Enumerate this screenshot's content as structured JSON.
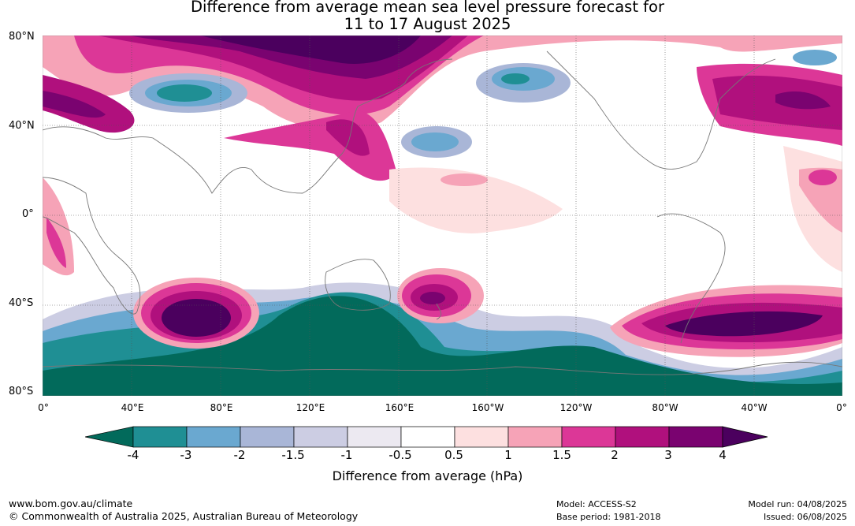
{
  "title_line1": "Difference from average mean sea level pressure forecast for",
  "title_line2": "11 to 17 August 2025",
  "lat_labels": [
    "80°N",
    "40°N",
    "0°",
    "40°S",
    "80°S"
  ],
  "lon_labels": [
    "0°",
    "40°E",
    "80°E",
    "120°E",
    "160°E",
    "160°W",
    "120°W",
    "80°W",
    "40°W",
    "0°"
  ],
  "colorbar": {
    "ticks": [
      "-4",
      "-3",
      "-2",
      "-1.5",
      "-1",
      "-0.5",
      "0.5",
      "1",
      "1.5",
      "2",
      "3",
      "4"
    ],
    "colors": [
      "#026a5b",
      "#1f8f94",
      "#6aa8d0",
      "#a9b6d7",
      "#cccde3",
      "#ece9f1",
      "#ffffff",
      "#fde0e0",
      "#f6a3b7",
      "#dc3797",
      "#b0107d",
      "#7a0370",
      "#4b005e"
    ],
    "label": "Difference from average (hPa)"
  },
  "footer": {
    "website": "www.bom.gov.au/climate",
    "copyright": "© Commonwealth of Australia 2025, Australian Bureau of Meteorology",
    "model": "Model: ACCESS-S2",
    "base_period": "Base period: 1981-2018",
    "model_run": "Model run: 04/08/2025",
    "issued": "Issued: 06/08/2025"
  }
}
